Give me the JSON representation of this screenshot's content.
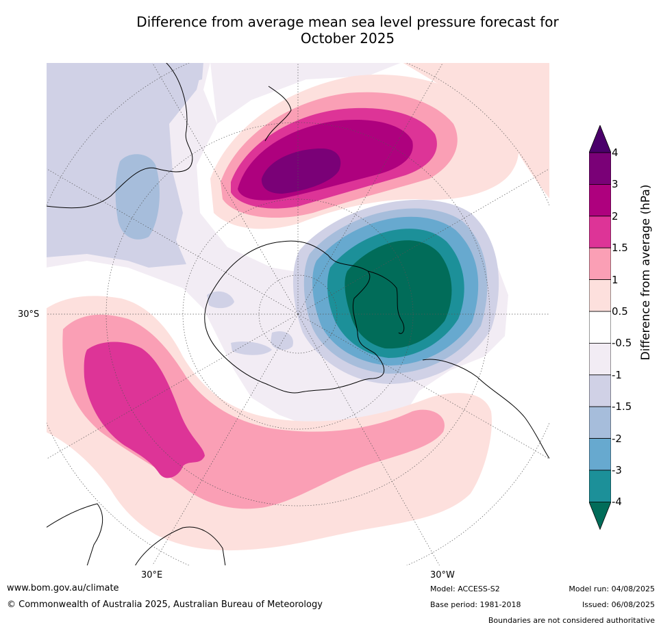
{
  "title_line1": "Difference from average mean sea level pressure forecast for",
  "title_line2": "October 2025",
  "labels": {
    "lat30s": "30°S",
    "lon30e": "30°E",
    "lon30w": "30°W"
  },
  "colorbar": {
    "title": "Difference from average (hPa)",
    "ticks": [
      "4",
      "3",
      "2",
      "1.5",
      "1",
      "0.5",
      "-0.5",
      "-1",
      "-1.5",
      "-2",
      "-3",
      "-4"
    ],
    "colors": [
      "#4a006a",
      "#7a0177",
      "#ae017e",
      "#dd3497",
      "#fa9fb5",
      "#fde0dd",
      "#ffffff",
      "#f2ecf4",
      "#d0d1e6",
      "#a6bddb",
      "#67a9cf",
      "#1c9099",
      "#016c59"
    ]
  },
  "footer": {
    "website": "www.bom.gov.au/climate",
    "copyright": "© Commonwealth of Australia 2025, Australian Bureau of Meteorology",
    "model": "Model: ACCESS-S2",
    "base_period": "Base period: 1981-2018",
    "model_run": "Model run: 04/08/2025",
    "issued": "Issued: 06/08/2025",
    "disclaimer": "Boundaries are not considered authoritative"
  }
}
